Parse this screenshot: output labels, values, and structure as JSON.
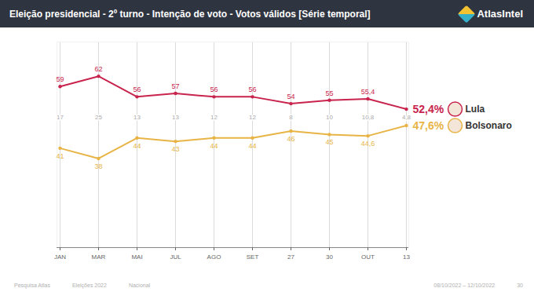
{
  "chart_data": {
    "type": "line",
    "title": "Eleição presidencial - 2º turno - Intenção de voto - Votos válidos [Série temporal]",
    "brand": "AtlasIntel",
    "categories": [
      "JAN",
      "MAR",
      "MAI",
      "JUL",
      "AGO",
      "SET",
      "27",
      "30",
      "OUT",
      "13"
    ],
    "series": [
      {
        "name": "Lula",
        "color": "#c8244d",
        "values": [
          59,
          62,
          56,
          57,
          56,
          56,
          54,
          55,
          55.4,
          52.4
        ],
        "value_labels": [
          "59",
          "62",
          "56",
          "57",
          "56",
          "56",
          "54",
          "55",
          "55,4",
          "52,4%"
        ]
      },
      {
        "name": "Bolsonaro",
        "color": "#e8b446",
        "values": [
          41,
          38,
          44,
          43,
          44,
          44,
          46,
          45,
          44.6,
          47.6
        ],
        "value_labels": [
          "41",
          "38",
          "44",
          "43",
          "44",
          "44",
          "46",
          "45",
          "44,6",
          "47,6%"
        ]
      }
    ],
    "differences": {
      "values": [
        17,
        25,
        13,
        13,
        12,
        12,
        8,
        10,
        10.8,
        4.8
      ],
      "value_labels": [
        "17",
        "25",
        "13",
        "13",
        "12",
        "12",
        "8",
        "10",
        "10,8",
        "4,8"
      ]
    },
    "ylim": [
      12,
      72
    ],
    "grid": true,
    "tick_labels": "x",
    "data_labels": true,
    "footer": [
      "Pesquisa Atlas",
      "Eleições 2022",
      "Nacional",
      "08/10/2022 – 12/10/2022",
      "30"
    ]
  }
}
